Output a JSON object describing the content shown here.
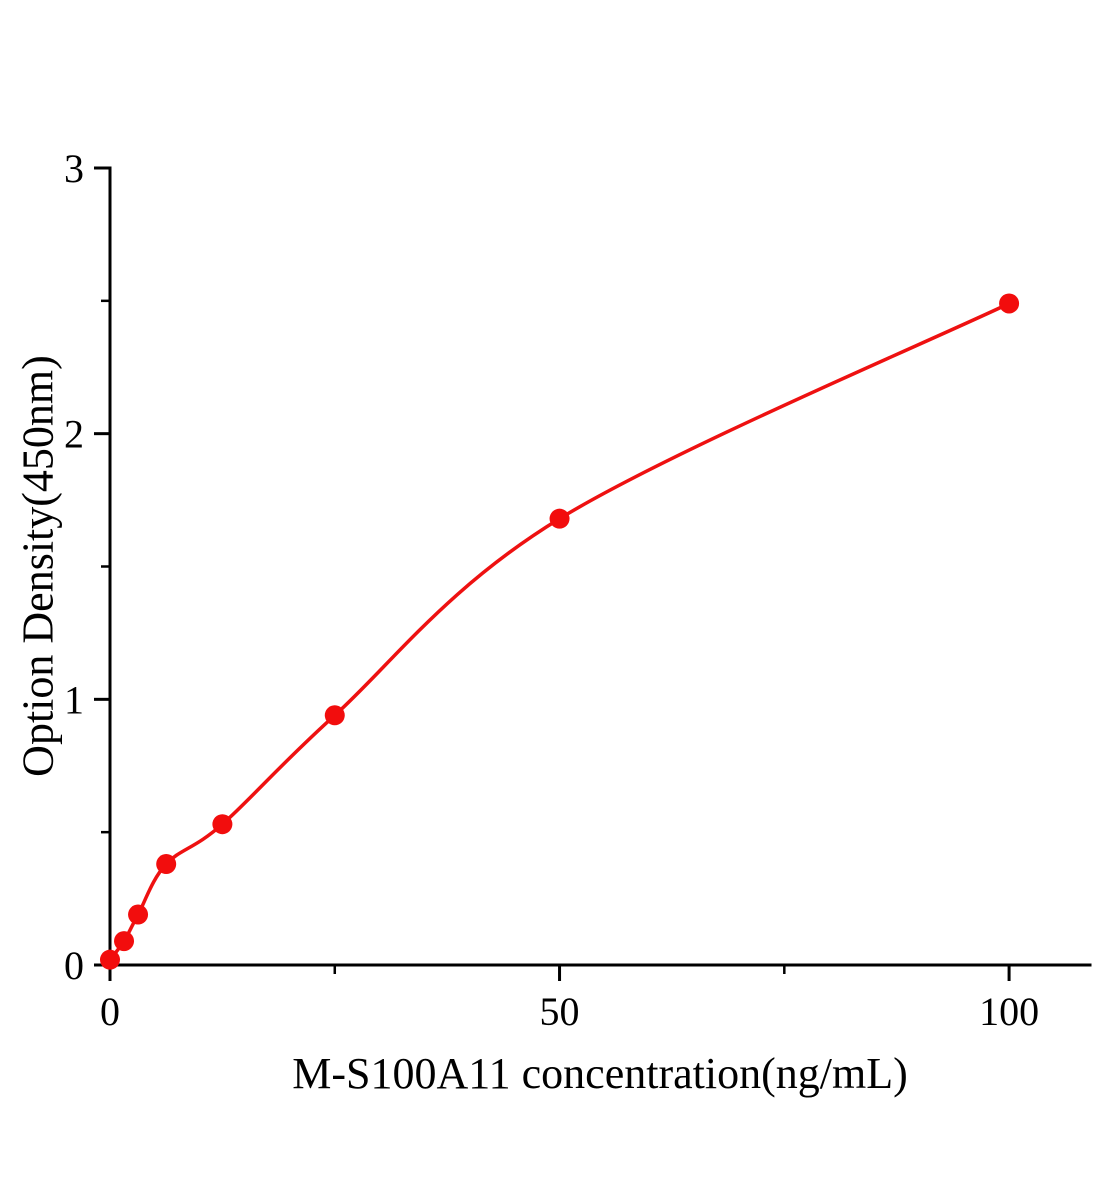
{
  "chart_data": {
    "type": "scatter",
    "title": "",
    "xlabel": "M-S100A11 concentration(ng/mL)",
    "ylabel": "Option Density(450nm)",
    "x": [
      0,
      1.56,
      3.12,
      6.25,
      12.5,
      25,
      50,
      100
    ],
    "y": [
      0.02,
      0.09,
      0.19,
      0.38,
      0.53,
      0.94,
      1.68,
      2.49
    ],
    "fit_curve": "smooth saturation fit through data points",
    "xlim": [
      0,
      109
    ],
    "ylim": [
      0,
      3
    ],
    "x_major_ticks": [
      0,
      50,
      100
    ],
    "x_minor_ticks": [
      25,
      75
    ],
    "y_major_ticks": [
      0,
      1,
      2,
      3
    ],
    "y_minor_ticks": [
      0.5,
      1.5,
      2.5
    ],
    "grid": "off",
    "legend": "none",
    "line_color": "#ee1111",
    "point_color": "#f20d0d",
    "axis_color": "#000000",
    "marker_radius": 10
  }
}
